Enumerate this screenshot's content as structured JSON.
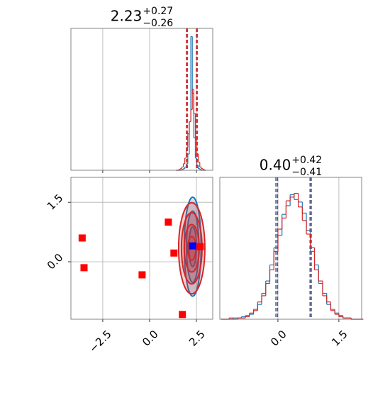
{
  "chart_data": [
    {
      "type": "histogram",
      "title": "2.23",
      "title_upper": "+0.27",
      "title_lower": "−0.26",
      "grid": true,
      "bins": [
        1.4,
        1.48,
        1.56,
        1.64,
        1.72,
        1.8,
        1.88,
        1.96,
        2.04,
        2.12,
        2.2,
        2.28,
        2.36,
        2.44,
        2.52,
        2.6,
        2.68,
        2.76,
        2.84,
        2.92,
        3.0
      ],
      "ylim": [
        0,
        175
      ],
      "series": [
        {
          "color": "#1f77b4",
          "values": [
            0,
            0,
            0,
            0,
            1,
            2,
            4,
            8,
            20,
            60,
            165,
            95,
            40,
            15,
            6,
            2,
            1,
            0,
            0,
            0
          ],
          "quantiles": [
            2.02,
            2.55
          ]
        },
        {
          "color": "#d62728",
          "values": [
            0,
            0,
            1,
            2,
            4,
            8,
            15,
            28,
            45,
            60,
            75,
            100,
            70,
            40,
            20,
            10,
            4,
            2,
            1,
            0
          ],
          "quantiles": [
            1.97,
            2.5
          ]
        }
      ]
    },
    {
      "type": "contour",
      "grid": true,
      "xlim": [
        -4.2,
        3.37
      ],
      "ylim": [
        -1.45,
        2.13
      ],
      "xticks": [
        {
          "value": -2.5,
          "label": "−2.5"
        },
        {
          "value": 0,
          "label": "0.0"
        },
        2.5
      ],
      "yticks": [
        {
          "value": 0,
          "label": "0.0"
        },
        1.5
      ],
      "contours": [
        {
          "color": "#1f77b4",
          "center": [
            2.3,
            0.38
          ],
          "radii": [
            [
              0.45,
              1.25
            ],
            [
              0.33,
              0.9
            ],
            [
              0.2,
              0.5
            ]
          ]
        },
        {
          "color": "#d62728",
          "center": [
            2.25,
            0.34
          ],
          "radii": [
            [
              0.7,
              1.15
            ],
            [
              0.55,
              0.9
            ],
            [
              0.4,
              0.6
            ],
            [
              0.22,
              0.3
            ]
          ]
        }
      ],
      "markers": [
        {
          "color": "#ff0000",
          "x": [
            -3.6,
            -3.5,
            -0.4,
            1.0,
            1.3,
            1.75,
            2.7
          ],
          "y": [
            0.6,
            -0.15,
            -0.33,
            1.0,
            0.22,
            -1.33,
            0.38
          ]
        },
        {
          "color": "#0000ff",
          "x": [
            2.3
          ],
          "y": [
            0.4
          ]
        }
      ]
    },
    {
      "type": "histogram",
      "title": "0.40",
      "title_upper": "+0.42",
      "title_lower": "−0.41",
      "grid": true,
      "xlim": [
        -1.43,
        2.06
      ],
      "xticks": [
        {
          "value": 0,
          "label": "0.0"
        },
        1.5
      ],
      "bins": [
        -1.4,
        -1.3,
        -1.2,
        -1.1,
        -1.0,
        -0.9,
        -0.8,
        -0.7,
        -0.6,
        -0.5,
        -0.4,
        -0.3,
        -0.2,
        -0.1,
        0.0,
        0.1,
        0.2,
        0.3,
        0.4,
        0.5,
        0.6,
        0.7,
        0.8,
        0.9,
        1.0,
        1.1,
        1.2,
        1.3,
        1.4,
        1.5,
        1.6,
        1.7,
        1.8,
        1.9,
        2.0,
        2.1
      ],
      "ylim": [
        0,
        115
      ],
      "series": [
        {
          "color": "#1f77b4",
          "values": [
            0,
            0,
            0,
            1,
            1,
            2,
            3,
            4,
            8,
            12,
            21,
            31,
            44,
            58,
            68,
            85,
            92,
            101,
            97,
            95,
            86,
            72,
            55,
            44,
            29,
            21,
            12,
            8,
            5,
            3,
            1,
            1,
            0,
            0,
            0
          ],
          "quantiles": [
            -0.05,
            0.79
          ]
        },
        {
          "color": "#d62728",
          "values": [
            0,
            0,
            1,
            0,
            1,
            1,
            2,
            5,
            7,
            14,
            19,
            29,
            40,
            55,
            73,
            82,
            96,
            99,
            102,
            91,
            80,
            69,
            58,
            40,
            31,
            19,
            14,
            7,
            4,
            2,
            1,
            1,
            0,
            0,
            0
          ],
          "quantiles": [
            -0.01,
            0.82
          ]
        }
      ]
    }
  ]
}
